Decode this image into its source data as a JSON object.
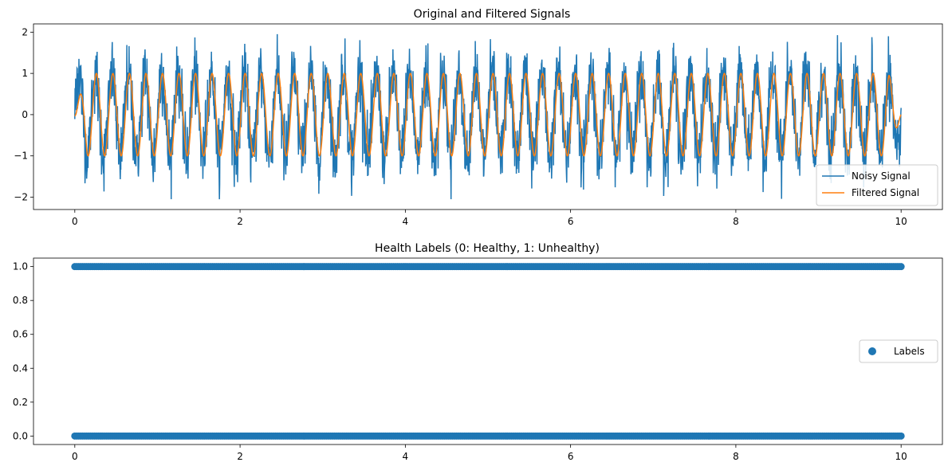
{
  "colors": {
    "noisy": "#1f77b4",
    "filtered": "#ff7f0e",
    "labels": "#1f77b4",
    "axes": "#000000",
    "legend_border": "#cccccc"
  },
  "chart_data": [
    {
      "type": "line",
      "title": "Original and Filtered Signals",
      "xlabel": "",
      "ylabel": "",
      "xlim": [
        -0.5,
        10.5
      ],
      "ylim": [
        -2.3,
        2.2
      ],
      "xticks": [
        0,
        2,
        4,
        6,
        8,
        10
      ],
      "xtick_labels": [
        "0",
        "2",
        "4",
        "6",
        "8",
        "10"
      ],
      "yticks": [
        2,
        1,
        0,
        -1,
        -2
      ],
      "ytick_labels": [
        "2",
        "1",
        "0",
        "−1",
        "−2"
      ],
      "grid": false,
      "legend": "lower right",
      "series": [
        {
          "name": "Noisy Signal",
          "description": "sinusoid ~5 Hz, amplitude ~1, plus high-frequency noise, range approx -2.05 to 1.95",
          "x_range": [
            0,
            10
          ],
          "frequency_hz": 5,
          "amplitude": 1.0,
          "noise_std": 0.35
        },
        {
          "name": "Filtered Signal",
          "description": "smooth sinusoid ~5 Hz, amplitude ~1",
          "x_range": [
            0,
            10
          ],
          "frequency_hz": 5,
          "amplitude": 1.0
        }
      ]
    },
    {
      "type": "scatter",
      "title": "Health Labels (0: Healthy, 1: Unhealthy)",
      "xlabel": "",
      "ylabel": "",
      "xlim": [
        -0.5,
        10.5
      ],
      "ylim": [
        -0.05,
        1.05
      ],
      "xticks": [
        0,
        2,
        4,
        6,
        8,
        10
      ],
      "xtick_labels": [
        "0",
        "2",
        "4",
        "6",
        "8",
        "10"
      ],
      "yticks": [
        0.0,
        0.2,
        0.4,
        0.6,
        0.8,
        1.0
      ],
      "ytick_labels": [
        "0.0",
        "0.2",
        "0.4",
        "0.6",
        "0.8",
        "1.0"
      ],
      "grid": false,
      "legend": "center right",
      "series": [
        {
          "name": "Labels",
          "description": "dense points at y=0 and y=1 across x 0 to 10",
          "x_range": [
            0,
            10
          ],
          "values": [
            0,
            1
          ]
        }
      ]
    }
  ]
}
